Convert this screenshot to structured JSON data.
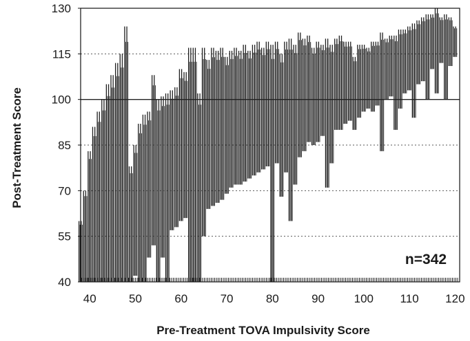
{
  "chart_data": {
    "type": "bar",
    "subtype": "floating-range",
    "title": "",
    "xlabel": "Pre-Treatment TOVA Impulsivity Score",
    "ylabel": "Post-Treatment Score",
    "annotation": "n=342",
    "n": 342,
    "xlim": [
      38,
      121
    ],
    "ylim": [
      40,
      130
    ],
    "x_ticks": [
      40,
      50,
      60,
      70,
      80,
      90,
      100,
      110,
      120
    ],
    "y_ticks": [
      40,
      55,
      70,
      85,
      100,
      115,
      130
    ],
    "reference_line": 100,
    "grid": "horizontal dotted at y ticks",
    "colors": {
      "bars": "#1f1f1f",
      "grid": "#555555",
      "reference": "#222222",
      "background": "#ffffff"
    },
    "series": [
      {
        "x": [
          38,
          39,
          40,
          41,
          42,
          43,
          44,
          45,
          46,
          47,
          48,
          49,
          50,
          51,
          52,
          53,
          54,
          55,
          56,
          57,
          58,
          59,
          60,
          61,
          62,
          63,
          64,
          65,
          66,
          67,
          68,
          69,
          70,
          71,
          72,
          73,
          74,
          75,
          76,
          77,
          78,
          79,
          80,
          81,
          82,
          83,
          84,
          85,
          86,
          87,
          88,
          89,
          90,
          91,
          92,
          93,
          94,
          95,
          96,
          97,
          98,
          99,
          100,
          101,
          102,
          103,
          104,
          105,
          106,
          107,
          108,
          109,
          110,
          111,
          112,
          113,
          114,
          115,
          116,
          117,
          118,
          119,
          120
        ],
        "high": [
          60,
          70,
          83,
          91,
          96,
          100,
          105,
          108,
          112,
          115,
          124,
          78,
          85,
          92,
          95,
          96,
          108,
          100,
          101,
          102,
          103,
          104,
          110,
          109,
          117,
          117,
          102,
          117,
          113,
          117,
          116,
          117,
          114,
          116,
          117,
          116,
          118,
          116,
          118,
          119,
          117,
          119,
          118,
          119,
          115,
          119,
          120,
          118,
          122,
          120,
          121,
          117,
          119,
          118,
          120,
          118,
          120,
          121,
          119,
          119,
          114,
          118,
          118,
          117,
          119,
          119,
          122,
          120,
          121,
          121,
          123,
          123,
          124,
          125,
          126,
          127,
          128,
          128,
          130,
          127,
          128,
          127,
          124
        ],
        "low": [
          40,
          40,
          40,
          40,
          40,
          40,
          40,
          40,
          40,
          40,
          40,
          40,
          42,
          40,
          40,
          48,
          52,
          40,
          48,
          40,
          57,
          58,
          60,
          61,
          40,
          40,
          40,
          55,
          64,
          65,
          66,
          67,
          69,
          71,
          72,
          72,
          73,
          74,
          75,
          76,
          77,
          78,
          40,
          79,
          68,
          76,
          60,
          72,
          81,
          83,
          86,
          85,
          86,
          88,
          71,
          79,
          90,
          90,
          92,
          93,
          90,
          94,
          96,
          97,
          96,
          98,
          83,
          100,
          101,
          90,
          97,
          102,
          103,
          94,
          105,
          106,
          100,
          110,
          102,
          112,
          100,
          111,
          114
        ]
      }
    ]
  }
}
